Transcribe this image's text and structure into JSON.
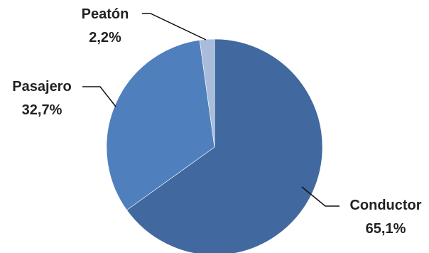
{
  "chart_data": {
    "type": "pie",
    "slices": [
      {
        "label": "Conductor",
        "value": 65.1,
        "value_text": "65,1%",
        "color": "#4169A0"
      },
      {
        "label": "Pasajero",
        "value": 32.7,
        "value_text": "32,7%",
        "color": "#4F80BD"
      },
      {
        "label": "Peatón",
        "value": 2.2,
        "value_text": "2,2%",
        "color": "#A9BCDB"
      }
    ],
    "start": "top",
    "direction": "clockwise",
    "legend": "none"
  }
}
